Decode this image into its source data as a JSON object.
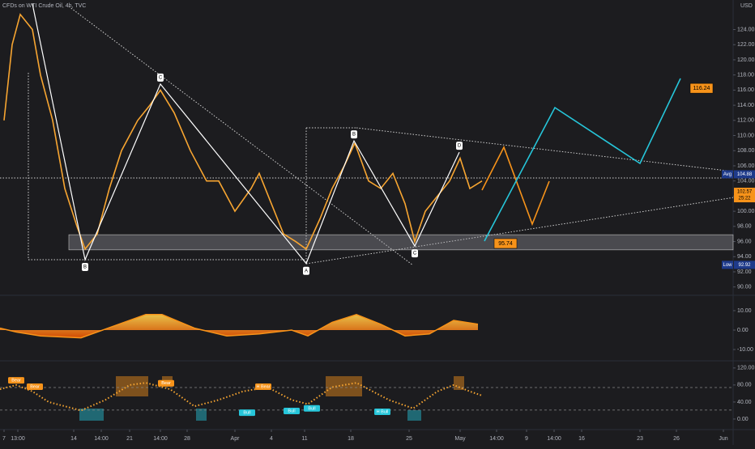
{
  "title": "CFDs on WTI Crude Oil, 4h, TVC",
  "currency": "USD",
  "chart_data": [
    {
      "type": "line",
      "color": "#f7a531",
      "x": [
        0.5,
        1.5,
        2.5,
        4.0,
        5.0,
        6.5,
        8.0,
        9.5,
        10.5,
        12.0,
        13.5,
        15.0,
        17.0,
        18.5,
        19.8,
        21.5,
        23.5,
        25.5,
        27.0,
        29.0,
        31.0,
        32.0,
        33.5,
        35.0,
        36.5,
        37.8,
        39.5,
        41.0,
        42.5,
        43.8,
        45.5,
        47.0,
        48.5,
        50.0,
        51.2,
        52.5,
        54.0,
        55.5,
        56.8,
        58.0,
        59.5
      ],
      "values": [
        112,
        122,
        126,
        124,
        118,
        112,
        103,
        98,
        95,
        97,
        103,
        108,
        112,
        114,
        116,
        113,
        108,
        104,
        104,
        100,
        103,
        105,
        101,
        97,
        96,
        95,
        99,
        103,
        106,
        109,
        104,
        103,
        105,
        101,
        96,
        100,
        102,
        104,
        107,
        103,
        104
      ],
      "xlim": [
        0,
        90.5
      ],
      "xticks": [
        {
          "value": 0.5,
          "label": "7"
        },
        {
          "value": 2.2,
          "label": "13:00"
        },
        {
          "value": 9.1,
          "label": "14"
        },
        {
          "value": 12.5,
          "label": "14:00"
        },
        {
          "value": 16.0,
          "label": "21"
        },
        {
          "value": 19.8,
          "label": "14:00"
        },
        {
          "value": 23.1,
          "label": "28"
        },
        {
          "value": 29.0,
          "label": "Apr"
        },
        {
          "value": 33.5,
          "label": "4"
        },
        {
          "value": 37.6,
          "label": "11"
        },
        {
          "value": 43.3,
          "label": "18"
        },
        {
          "value": 50.5,
          "label": "25"
        },
        {
          "value": 56.8,
          "label": "May"
        },
        {
          "value": 61.3,
          "label": "14:00"
        },
        {
          "value": 65.0,
          "label": "9"
        },
        {
          "value": 68.4,
          "label": "14:00"
        },
        {
          "value": 71.8,
          "label": "16"
        },
        {
          "value": 79.0,
          "label": "23"
        },
        {
          "value": 83.5,
          "label": "26"
        },
        {
          "value": 89.3,
          "label": "Jun"
        }
      ],
      "ylim": [
        88.9,
        127.9
      ],
      "yticks": [
        {
          "value": 90,
          "label": "90.00"
        },
        {
          "value": 92,
          "label": "92.00"
        },
        {
          "value": 94,
          "label": "94.00"
        },
        {
          "value": 96,
          "label": "96.00"
        },
        {
          "value": 98,
          "label": "98.00"
        },
        {
          "value": 100,
          "label": "100.00"
        },
        {
          "value": 102,
          "label": "102.00"
        },
        {
          "value": 104,
          "label": "104.00"
        },
        {
          "value": 106,
          "label": "106.00"
        },
        {
          "value": 108,
          "label": "108.00"
        },
        {
          "value": 110,
          "label": "110.00"
        },
        {
          "value": 112,
          "label": "112.00"
        },
        {
          "value": 114,
          "label": "114.00"
        },
        {
          "value": 116,
          "label": "116.00"
        },
        {
          "value": 118,
          "label": "118.00"
        },
        {
          "value": 120,
          "label": "120.00"
        },
        {
          "value": 122,
          "label": "122.00"
        },
        {
          "value": 124,
          "label": "124.00"
        }
      ],
      "support_zone": [
        94.9,
        96.9
      ],
      "pattern": {
        "x": [
          4.0,
          10.5,
          19.8,
          37.8,
          43.7,
          51.2,
          56.7
        ],
        "values": [
          127.4,
          93.6,
          116.8,
          93.1,
          109.3,
          95.4,
          107.8
        ],
        "labels": [
          null,
          "B",
          "C",
          "A",
          "B",
          "C",
          "D"
        ]
      },
      "price_tags": [
        {
          "value": 116.24,
          "x": 85.2,
          "color": "#f7931a"
        },
        {
          "value": 95.74,
          "x": 61.0,
          "color": "#f7931a"
        }
      ],
      "avg": {
        "label": "Avg",
        "value": 104.88
      },
      "last": {
        "value": 102.57,
        "countdown": "25:22",
        "color": "#f7931a"
      },
      "low": {
        "label": "Low",
        "value": 92.92
      }
    },
    {
      "type": "area",
      "color": "#f7931a",
      "x": [
        0,
        2,
        5,
        10,
        14,
        18,
        20,
        24,
        28,
        32,
        36,
        38,
        41,
        44,
        47,
        50,
        53,
        56,
        59
      ],
      "values": [
        1,
        -1,
        -3,
        -4,
        2,
        8,
        8,
        1,
        -3,
        -2,
        0,
        -3,
        4,
        8,
        3,
        -3,
        -2,
        5,
        3
      ],
      "xlim": [
        0,
        90.5
      ],
      "ylim": [
        -15.4,
        17.9
      ],
      "yticks": [
        {
          "value": 10,
          "label": "10.00"
        },
        {
          "value": 0,
          "label": "0.00"
        },
        {
          "value": -10,
          "label": "-10.00"
        }
      ]
    },
    {
      "type": "dotted",
      "color": "#f7a531",
      "x": [
        0,
        2,
        4,
        6,
        10,
        13,
        16,
        18,
        21,
        24,
        27,
        30,
        33,
        36,
        38,
        41,
        44,
        48,
        51,
        54,
        56,
        58,
        59.5
      ],
      "values": [
        70,
        80,
        65,
        40,
        20,
        45,
        80,
        85,
        70,
        30,
        45,
        65,
        75,
        45,
        35,
        75,
        85,
        45,
        25,
        65,
        80,
        65,
        55
      ],
      "xlim": [
        0,
        90.5
      ],
      "ylim": [
        -22.9,
        133
      ],
      "yticks": [
        {
          "value": 120,
          "label": "120.00"
        },
        {
          "value": 80,
          "label": "80.00"
        },
        {
          "value": 40,
          "label": "40.00"
        },
        {
          "value": 0,
          "label": "0.00"
        }
      ],
      "levels": [
        74,
        21
      ],
      "badges": [
        {
          "label": "Bear",
          "x": 2.0,
          "y": 91,
          "color": "#f7931a"
        },
        {
          "label": "Bear",
          "x": 4.3,
          "y": 76,
          "color": "#f7931a"
        },
        {
          "label": "Bear",
          "x": 20.5,
          "y": 84,
          "color": "#f7931a"
        },
        {
          "label": "H Bear",
          "x": 32.5,
          "y": 76,
          "color": "#f7931a"
        },
        {
          "label": "Bull",
          "x": 30.5,
          "y": 15,
          "color": "#26c6da"
        },
        {
          "label": "Bull",
          "x": 36.0,
          "y": 19,
          "color": "#26c6da"
        },
        {
          "label": "Bull",
          "x": 38.5,
          "y": 25,
          "color": "#26c6da"
        },
        {
          "label": "H Bull",
          "x": 47.2,
          "y": 17,
          "color": "#26c6da"
        }
      ]
    }
  ]
}
